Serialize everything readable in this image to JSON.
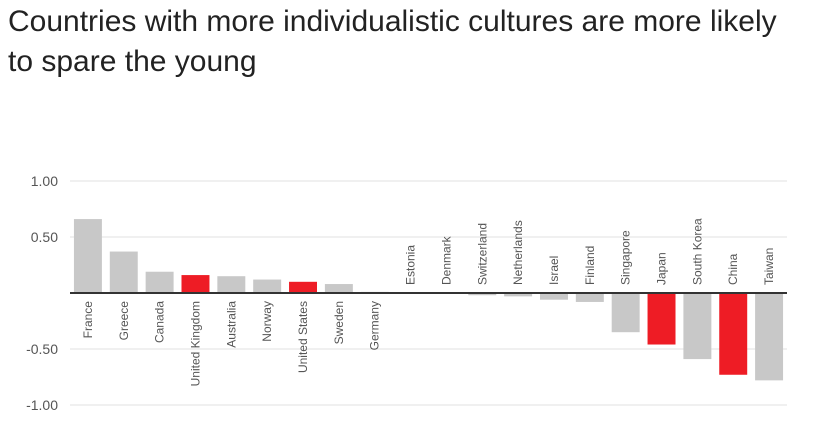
{
  "chart_data": {
    "type": "bar",
    "title": "Countries with more individualistic cultures are more likely to spare the young",
    "xlabel": "",
    "ylabel": "",
    "ylim": [
      -1.0,
      1.0
    ],
    "yticks": [
      {
        "value": 1.0,
        "label": "1.00"
      },
      {
        "value": 0.5,
        "label": "0.50"
      },
      {
        "value": -0.5,
        "label": "-0.50"
      },
      {
        "value": -1.0,
        "label": "-1.00"
      }
    ],
    "grid": true,
    "categories": [
      "France",
      "Greece",
      "Canada",
      "United Kingdom",
      "Australia",
      "Norway",
      "United States",
      "Sweden",
      "Germany",
      "Estonia",
      "Denmark",
      "Switzerland",
      "Netherlands",
      "Israel",
      "Finland",
      "Singapore",
      "Japan",
      "South Korea",
      "China",
      "Taiwan"
    ],
    "values": [
      0.66,
      0.37,
      0.19,
      0.16,
      0.15,
      0.12,
      0.1,
      0.08,
      0.01,
      0.0,
      0.0,
      -0.02,
      -0.03,
      -0.06,
      -0.08,
      -0.35,
      -0.46,
      -0.59,
      -0.73,
      -0.78
    ],
    "highlighted": [
      false,
      false,
      false,
      true,
      false,
      false,
      true,
      false,
      false,
      false,
      false,
      false,
      false,
      false,
      false,
      false,
      true,
      false,
      true,
      false
    ],
    "colors": {
      "default": "#c8c8c8",
      "highlight": "#ee1c25",
      "grid": "#e2e2e2",
      "zero_line": "#333333"
    }
  }
}
